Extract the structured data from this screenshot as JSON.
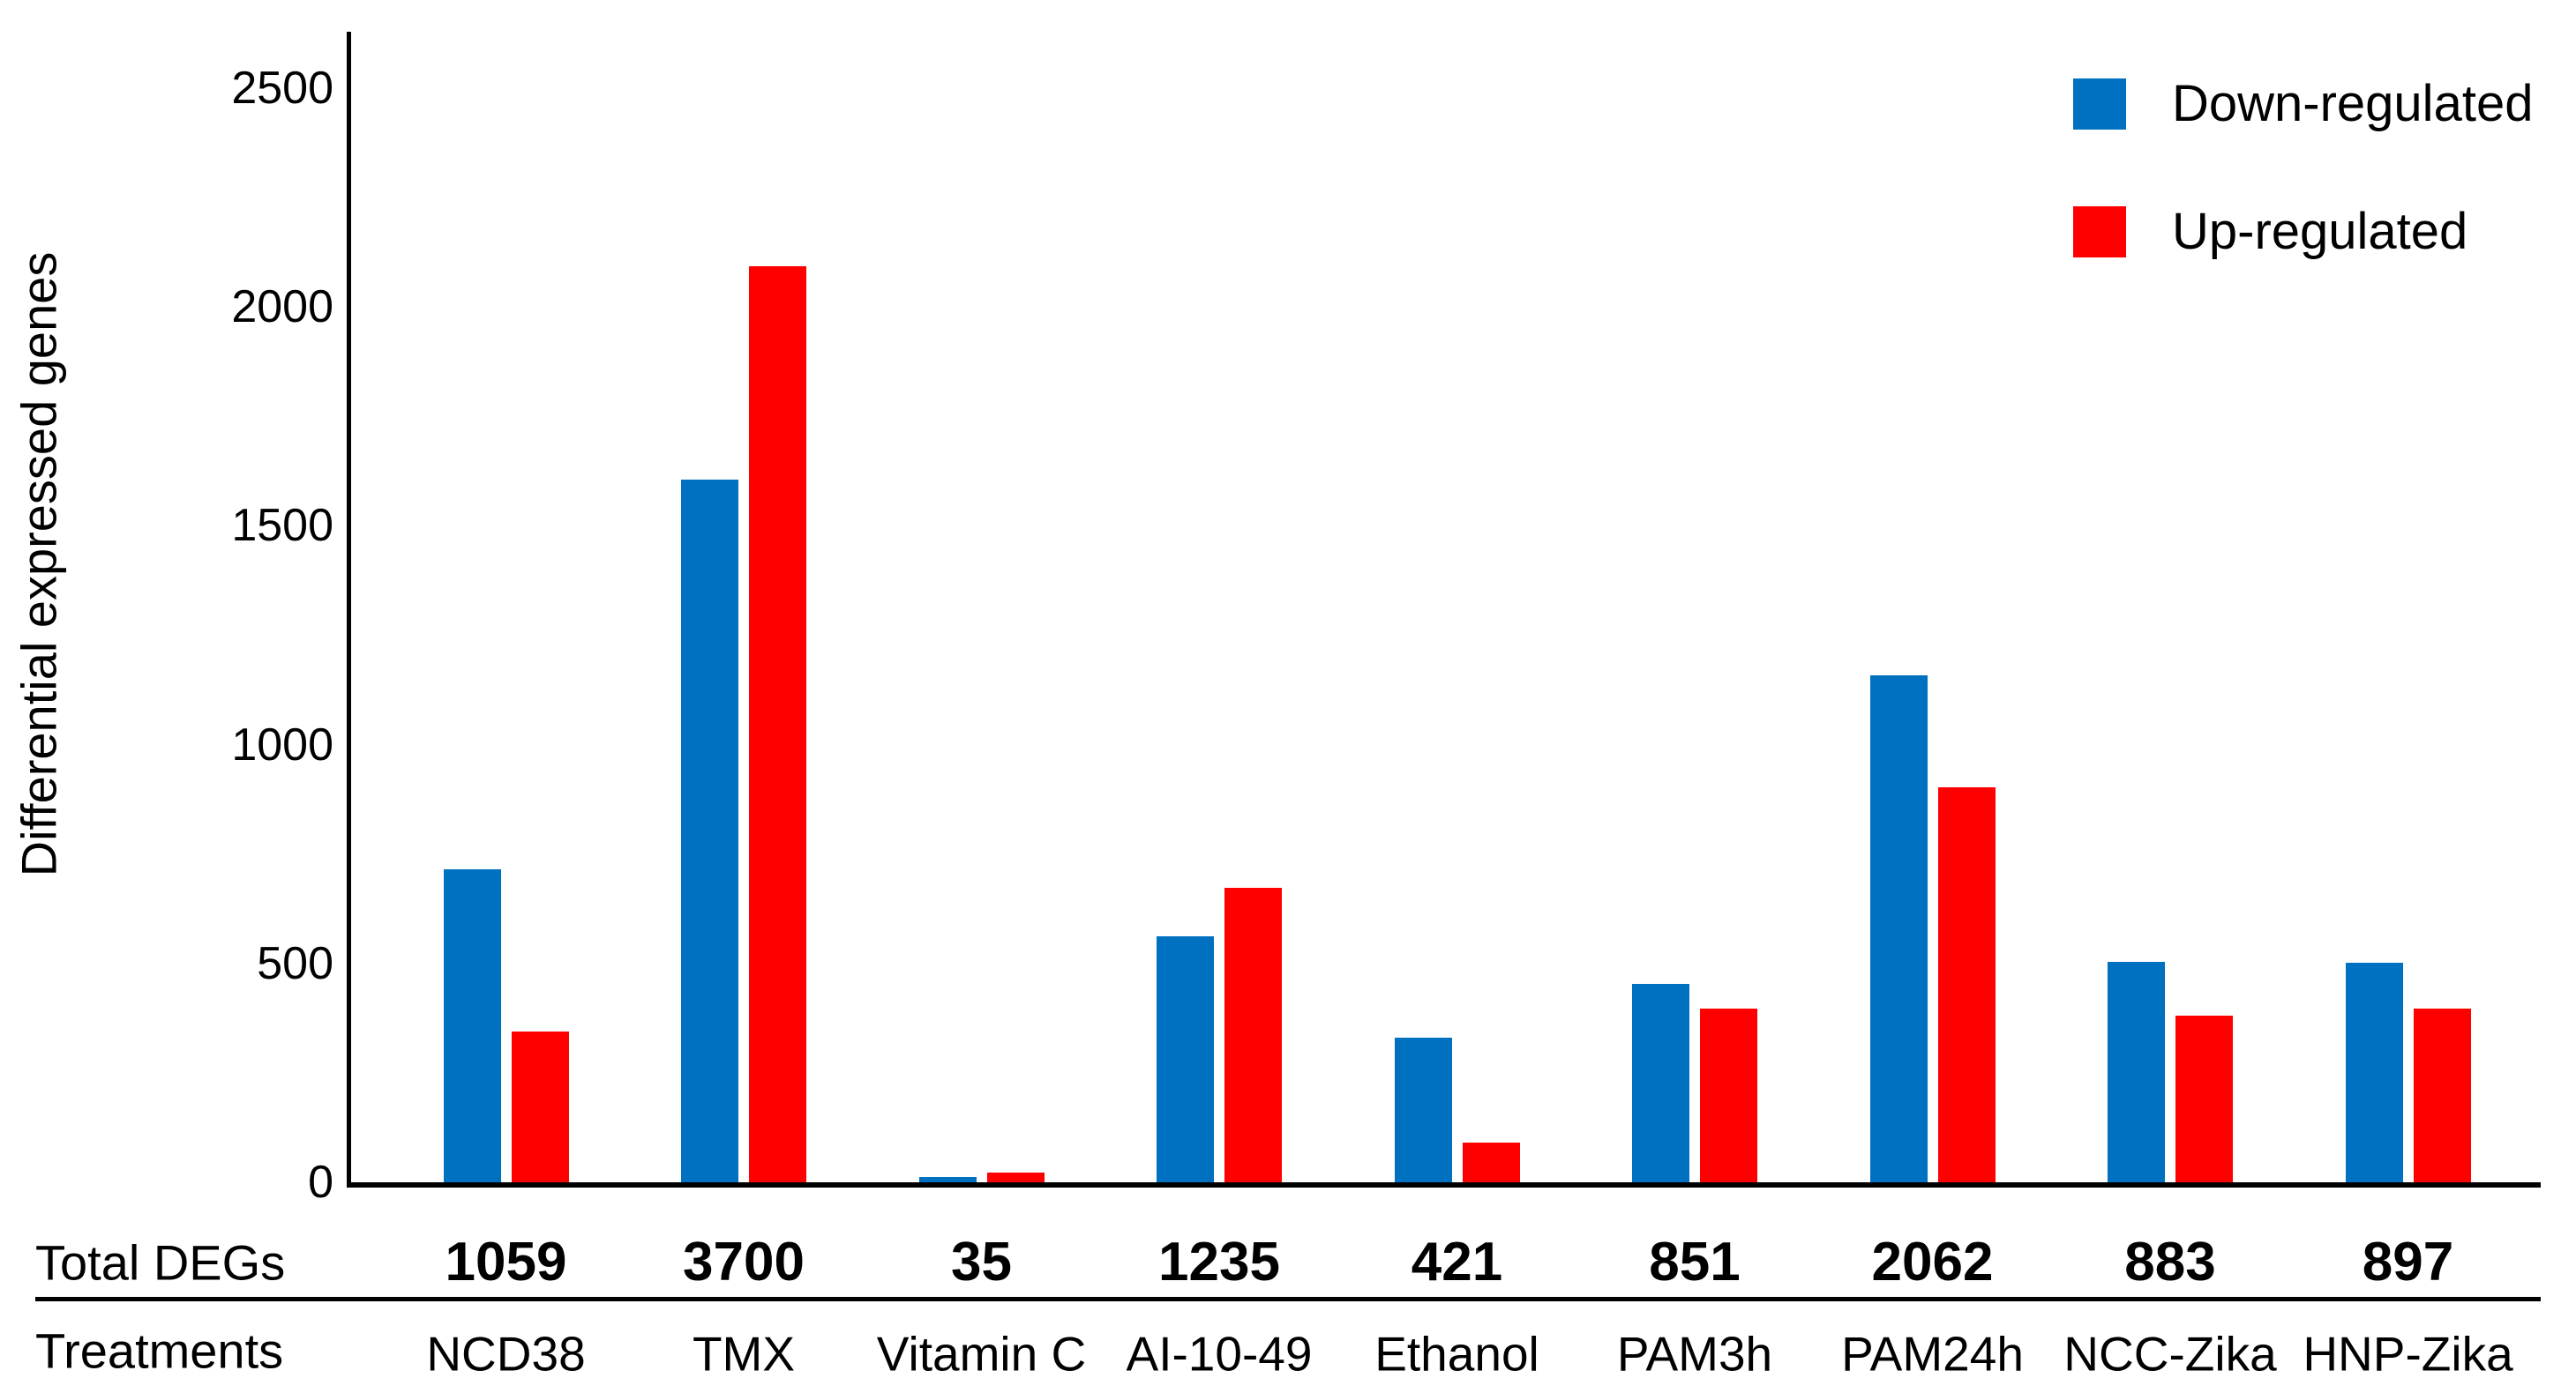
{
  "figure": {
    "totals_row_label": "Total DEGs",
    "treatments_row_label": "Treatments"
  },
  "chart_data": {
    "type": "bar",
    "title": "",
    "ylabel": "Differential expressed genes",
    "xlabel": "Treatments",
    "ylim": [
      0,
      2500
    ],
    "yticks": [
      0,
      500,
      1000,
      1500,
      2000,
      2500
    ],
    "grid": false,
    "legend_position": "top-right",
    "categories": [
      "NCD38",
      "TMX",
      "Vitamin C",
      "AI-10-49",
      "Ethanol",
      "PAM3h",
      "PAM24h",
      "NCC-Zika",
      "HNP-Zika"
    ],
    "series": [
      {
        "name": "Down-regulated",
        "color": "#0070C0",
        "values": [
          715,
          1606,
          12,
          563,
          330,
          454,
          1159,
          503,
          501
        ]
      },
      {
        "name": "Up-regulated",
        "color": "#FF0000",
        "values": [
          344,
          2094,
          23,
          672,
          91,
          397,
          903,
          380,
          396
        ]
      }
    ],
    "totals": {
      "label": "Total DEGs",
      "values": [
        "1059",
        "3700",
        "35",
        "1235",
        "421",
        "851",
        "2062",
        "883",
        "897"
      ]
    }
  }
}
